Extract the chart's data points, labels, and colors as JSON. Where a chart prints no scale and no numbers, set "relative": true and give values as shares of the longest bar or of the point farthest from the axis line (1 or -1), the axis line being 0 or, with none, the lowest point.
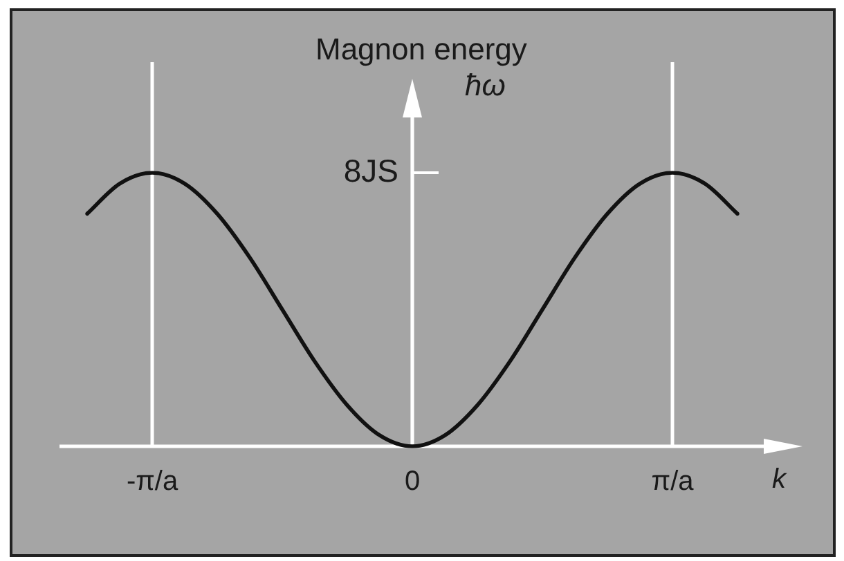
{
  "chart_data": {
    "type": "line",
    "relative": true,
    "grid": "x",
    "xlabel": "k",
    "ylabel": "Magnon energy\nħω",
    "categories": [
      null,
      null,
      "-π/a",
      null,
      null,
      null,
      null,
      null,
      null,
      null,
      "0",
      null,
      null,
      null,
      null,
      null,
      null,
      null,
      "π/a",
      null,
      null
    ],
    "values": [
      0.85,
      0.96,
      1,
      0.96,
      0.85,
      0.69,
      0.5,
      0.31,
      0.15,
      0.04,
      0,
      0.04,
      0.15,
      0.31,
      0.5,
      0.69,
      0.85,
      0.96,
      1,
      0.96,
      0.85
    ],
    "color": "#111111",
    "annotations": [
      "8JS"
    ]
  }
}
